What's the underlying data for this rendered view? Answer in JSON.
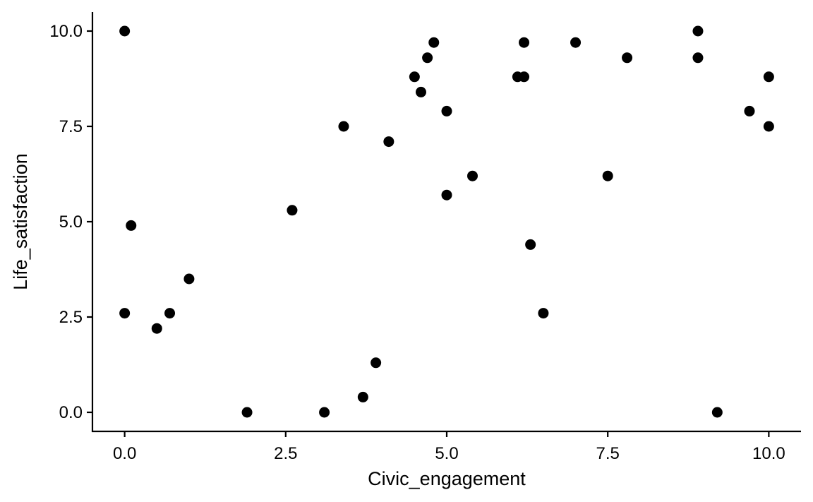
{
  "chart_data": {
    "type": "scatter",
    "title": "",
    "xlabel": "Civic_engagement",
    "ylabel": "Life_satisfaction",
    "xlim": [
      -0.5,
      10.5
    ],
    "ylim": [
      -0.5,
      10.5
    ],
    "xticks": [
      0.0,
      2.5,
      5.0,
      7.5,
      10.0
    ],
    "yticks": [
      0.0,
      2.5,
      5.0,
      7.5,
      10.0
    ],
    "xtick_labels": [
      "0.0",
      "2.5",
      "5.0",
      "7.5",
      "10.0"
    ],
    "ytick_labels": [
      "0.0",
      "2.5",
      "5.0",
      "7.5",
      "10.0"
    ],
    "grid": false,
    "point_color": "#000000",
    "points": [
      {
        "x": 0.0,
        "y": 10.0
      },
      {
        "x": 0.0,
        "y": 2.6
      },
      {
        "x": 0.1,
        "y": 4.9
      },
      {
        "x": 0.5,
        "y": 2.2
      },
      {
        "x": 0.7,
        "y": 2.6
      },
      {
        "x": 1.0,
        "y": 3.5
      },
      {
        "x": 1.9,
        "y": 0.0
      },
      {
        "x": 2.6,
        "y": 5.3
      },
      {
        "x": 3.1,
        "y": 0.0
      },
      {
        "x": 3.4,
        "y": 7.5
      },
      {
        "x": 3.7,
        "y": 0.4
      },
      {
        "x": 3.9,
        "y": 1.3
      },
      {
        "x": 4.1,
        "y": 7.1
      },
      {
        "x": 4.5,
        "y": 8.8
      },
      {
        "x": 4.6,
        "y": 8.4
      },
      {
        "x": 4.7,
        "y": 9.3
      },
      {
        "x": 4.8,
        "y": 9.7
      },
      {
        "x": 5.0,
        "y": 7.9
      },
      {
        "x": 5.0,
        "y": 5.7
      },
      {
        "x": 5.4,
        "y": 6.2
      },
      {
        "x": 6.1,
        "y": 8.8
      },
      {
        "x": 6.2,
        "y": 8.8
      },
      {
        "x": 6.2,
        "y": 9.7
      },
      {
        "x": 6.3,
        "y": 4.4
      },
      {
        "x": 6.5,
        "y": 2.6
      },
      {
        "x": 7.0,
        "y": 9.7
      },
      {
        "x": 7.5,
        "y": 6.2
      },
      {
        "x": 7.8,
        "y": 9.3
      },
      {
        "x": 8.9,
        "y": 10.0
      },
      {
        "x": 8.9,
        "y": 9.3
      },
      {
        "x": 9.2,
        "y": 0.0
      },
      {
        "x": 9.7,
        "y": 7.9
      },
      {
        "x": 10.0,
        "y": 8.8
      },
      {
        "x": 10.0,
        "y": 7.5
      }
    ]
  }
}
